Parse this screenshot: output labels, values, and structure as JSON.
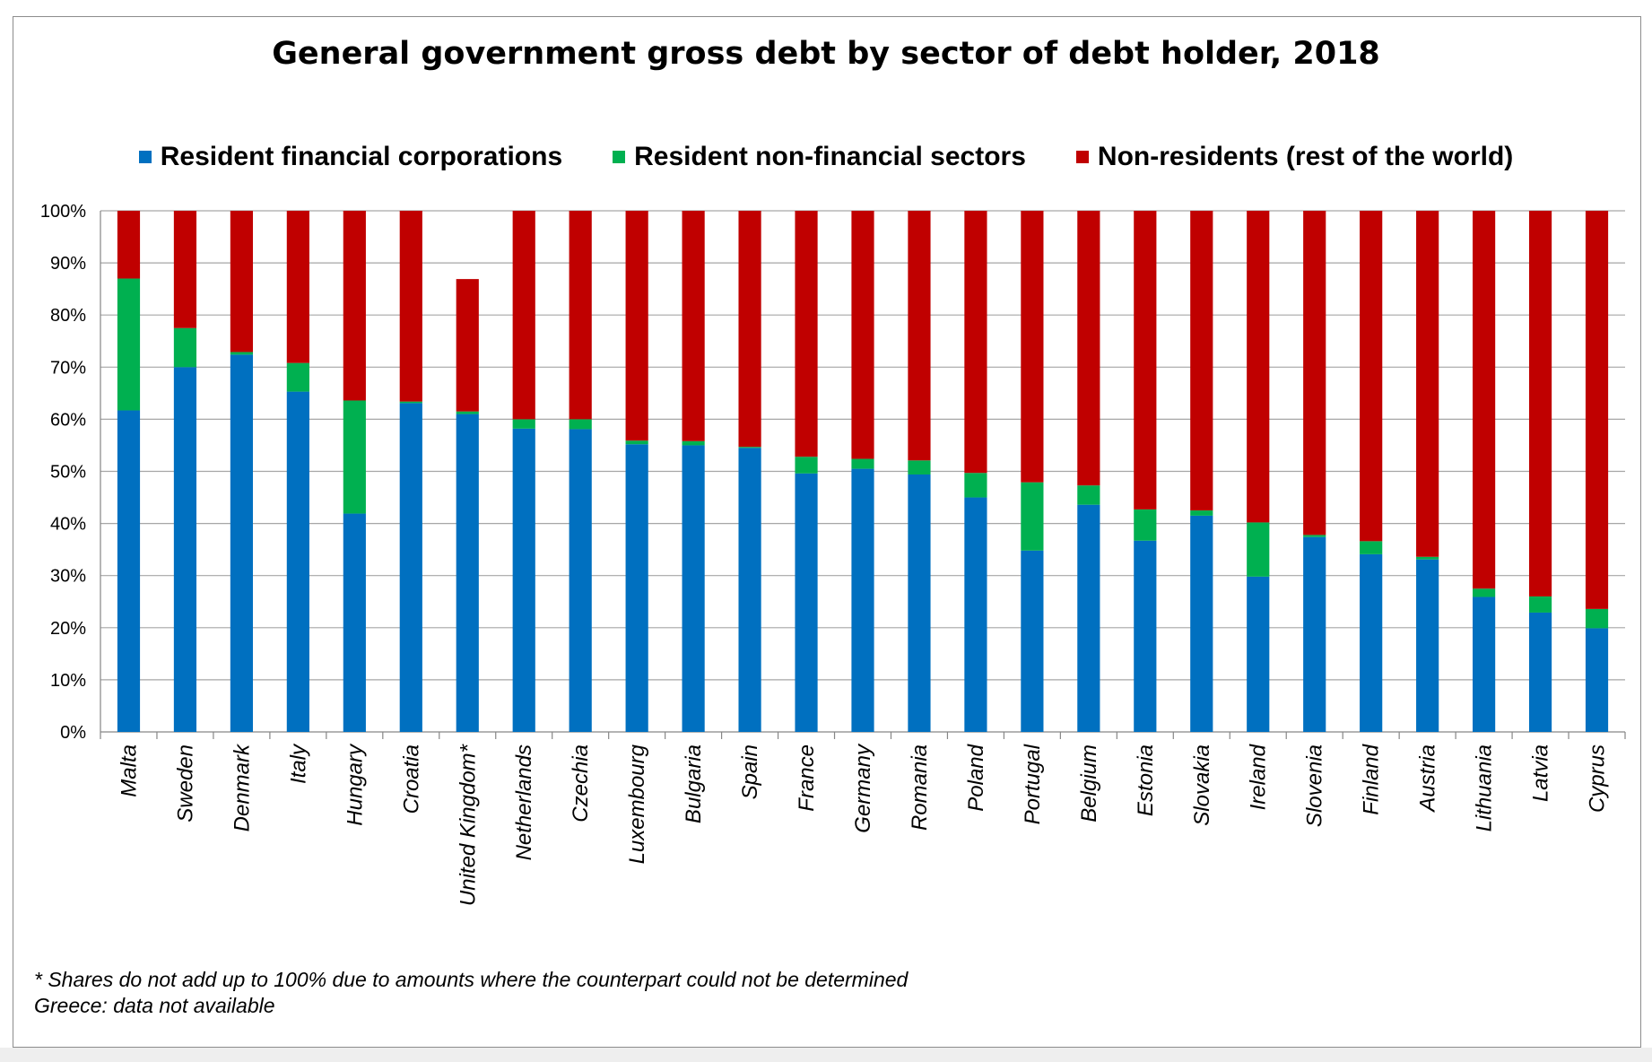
{
  "chart_data": {
    "type": "bar",
    "stacked": true,
    "title": "General government gross debt by sector of debt holder, 2018",
    "xlabel": "",
    "ylabel": "",
    "ylim": [
      0,
      100
    ],
    "yticks": [
      "0%",
      "10%",
      "20%",
      "30%",
      "40%",
      "50%",
      "60%",
      "70%",
      "80%",
      "90%",
      "100%"
    ],
    "grid": true,
    "legend_position": "top",
    "categories": [
      "Malta",
      "Sweden",
      "Denmark",
      "Italy",
      "Hungary",
      "Croatia",
      "United Kingdom*",
      "Netherlands",
      "Czechia",
      "Luxembourg",
      "Bulgaria",
      "Spain",
      "France",
      "Germany",
      "Romania",
      "Poland",
      "Portugal",
      "Belgium",
      "Estonia",
      "Slovakia",
      "Ireland",
      "Slovenia",
      "Finland",
      "Austria",
      "Lithuania",
      "Latvia",
      "Cyprus"
    ],
    "series": [
      {
        "name": "Resident financial corporations",
        "color": "#0070C0",
        "values": [
          61.7,
          70.0,
          72.4,
          65.3,
          41.9,
          63.1,
          61.0,
          58.2,
          58.1,
          55.2,
          55.0,
          54.5,
          49.6,
          50.5,
          49.4,
          45.0,
          34.8,
          43.6,
          36.7,
          41.5,
          29.8,
          37.4,
          34.1,
          33.1,
          25.9,
          22.9,
          19.9
        ]
      },
      {
        "name": "Resident non-financial sectors",
        "color": "#00B050",
        "values": [
          25.3,
          7.5,
          0.5,
          5.5,
          21.7,
          0.3,
          0.5,
          1.8,
          1.9,
          0.7,
          0.8,
          0.2,
          3.2,
          1.9,
          2.7,
          4.7,
          13.1,
          3.7,
          6.0,
          1.0,
          10.4,
          0.4,
          2.5,
          0.5,
          1.6,
          3.1,
          3.7
        ]
      },
      {
        "name": "Non-residents (rest of the world)",
        "color": "#C00000",
        "values": [
          13.0,
          22.5,
          27.1,
          29.2,
          36.4,
          36.6,
          25.4,
          40.0,
          40.0,
          44.1,
          44.2,
          45.3,
          47.2,
          47.6,
          47.9,
          50.3,
          52.1,
          52.7,
          57.3,
          57.5,
          59.8,
          62.2,
          63.4,
          66.4,
          72.5,
          74.0,
          76.4
        ]
      }
    ],
    "footnotes": [
      "* Shares do not add up to 100% due to amounts where the counterpart could not be determined",
      "Greece: data not available"
    ]
  }
}
